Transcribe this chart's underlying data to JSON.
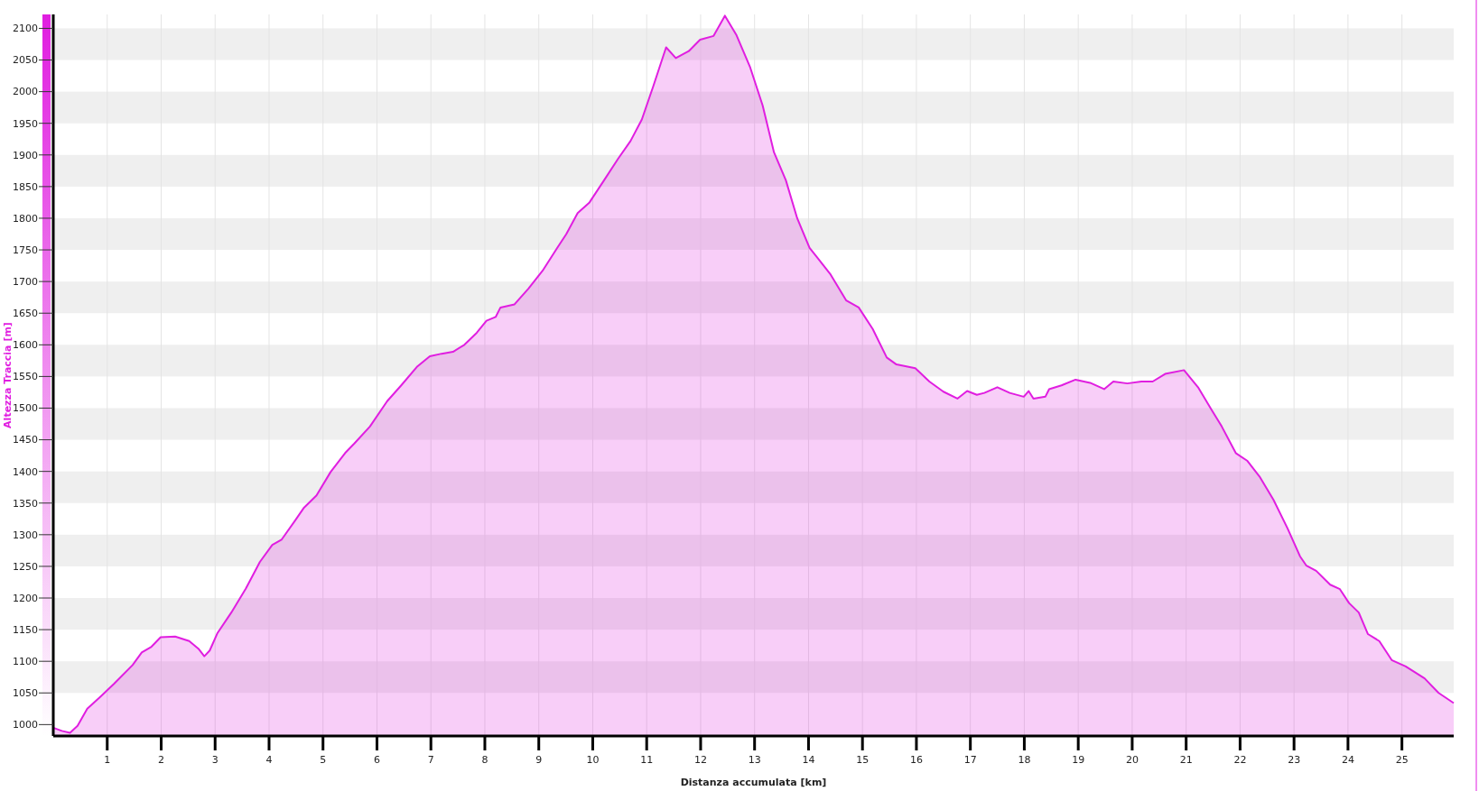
{
  "chart_data": {
    "type": "area",
    "xlabel": "Distanza accumulata [km]",
    "ylabel": "Altezza Traccia [m]",
    "xlim": [
      0,
      25.96
    ],
    "ylim": [
      982,
      2122
    ],
    "xticks": [
      1,
      2,
      3,
      4,
      5,
      6,
      7,
      8,
      9,
      10,
      11,
      12,
      13,
      14,
      15,
      16,
      17,
      18,
      19,
      20,
      21,
      22,
      23,
      24,
      25
    ],
    "yticks": [
      1000,
      1050,
      1100,
      1150,
      1200,
      1250,
      1300,
      1350,
      1400,
      1450,
      1500,
      1550,
      1600,
      1650,
      1700,
      1750,
      1800,
      1850,
      1900,
      1950,
      2000,
      2050,
      2100
    ],
    "grid": true,
    "series": [
      {
        "color": "#e01ee0",
        "x": [
          0,
          0.16,
          0.31,
          0.45,
          0.63,
          0.86,
          1.12,
          1.47,
          1.64,
          1.82,
          1.99,
          2.26,
          2.52,
          2.69,
          2.8,
          2.9,
          3.04,
          3.3,
          3.57,
          3.83,
          4.06,
          4.23,
          4.48,
          4.65,
          4.88,
          5.14,
          5.41,
          5.58,
          5.87,
          6.19,
          6.45,
          6.75,
          6.98,
          7.2,
          7.41,
          7.62,
          7.85,
          8.03,
          8.2,
          8.29,
          8.55,
          8.81,
          9.07,
          9.34,
          9.51,
          9.72,
          9.94,
          10.21,
          10.47,
          10.7,
          10.91,
          11.12,
          11.36,
          11.54,
          11.78,
          11.99,
          12.24,
          12.45,
          12.66,
          12.92,
          13.15,
          13.36,
          13.58,
          13.79,
          14.02,
          14.16,
          14.41,
          14.7,
          14.93,
          15.19,
          15.45,
          15.63,
          15.98,
          16.24,
          16.5,
          16.76,
          16.94,
          17.12,
          17.26,
          17.5,
          17.73,
          17.99,
          18.08,
          18.17,
          18.39,
          18.46,
          18.69,
          18.95,
          19.22,
          19.48,
          19.65,
          19.91,
          20.17,
          20.38,
          20.61,
          20.96,
          21.22,
          21.48,
          21.66,
          21.92,
          22.13,
          22.36,
          22.62,
          22.88,
          23.11,
          23.23,
          23.41,
          23.67,
          23.85,
          24.02,
          24.2,
          24.37,
          24.58,
          24.81,
          25.07,
          25.42,
          25.68,
          25.96
        ],
        "values": [
          995,
          990,
          987,
          998,
          1025,
          1043,
          1064,
          1094,
          1114,
          1123,
          1138,
          1139,
          1132,
          1120,
          1108,
          1117,
          1144,
          1177,
          1215,
          1257,
          1284,
          1292,
          1322,
          1343,
          1362,
          1399,
          1429,
          1444,
          1471,
          1511,
          1536,
          1566,
          1582,
          1586,
          1589,
          1600,
          1619,
          1638,
          1644,
          1659,
          1664,
          1689,
          1717,
          1753,
          1775,
          1808,
          1825,
          1860,
          1894,
          1922,
          1956,
          2008,
          2070,
          2053,
          2064,
          2082,
          2088,
          2120,
          2090,
          2038,
          1978,
          1904,
          1860,
          1800,
          1753,
          1738,
          1711,
          1670,
          1659,
          1625,
          1580,
          1569,
          1563,
          1542,
          1526,
          1515,
          1527,
          1521,
          1524,
          1533,
          1524,
          1518,
          1527,
          1515,
          1518,
          1530,
          1536,
          1545,
          1540,
          1530,
          1542,
          1539,
          1542,
          1542,
          1554,
          1560,
          1533,
          1496,
          1471,
          1429,
          1417,
          1392,
          1355,
          1310,
          1266,
          1251,
          1243,
          1221,
          1214,
          1192,
          1177,
          1143,
          1132,
          1102,
          1092,
          1073,
          1050,
          1034
        ]
      }
    ]
  }
}
